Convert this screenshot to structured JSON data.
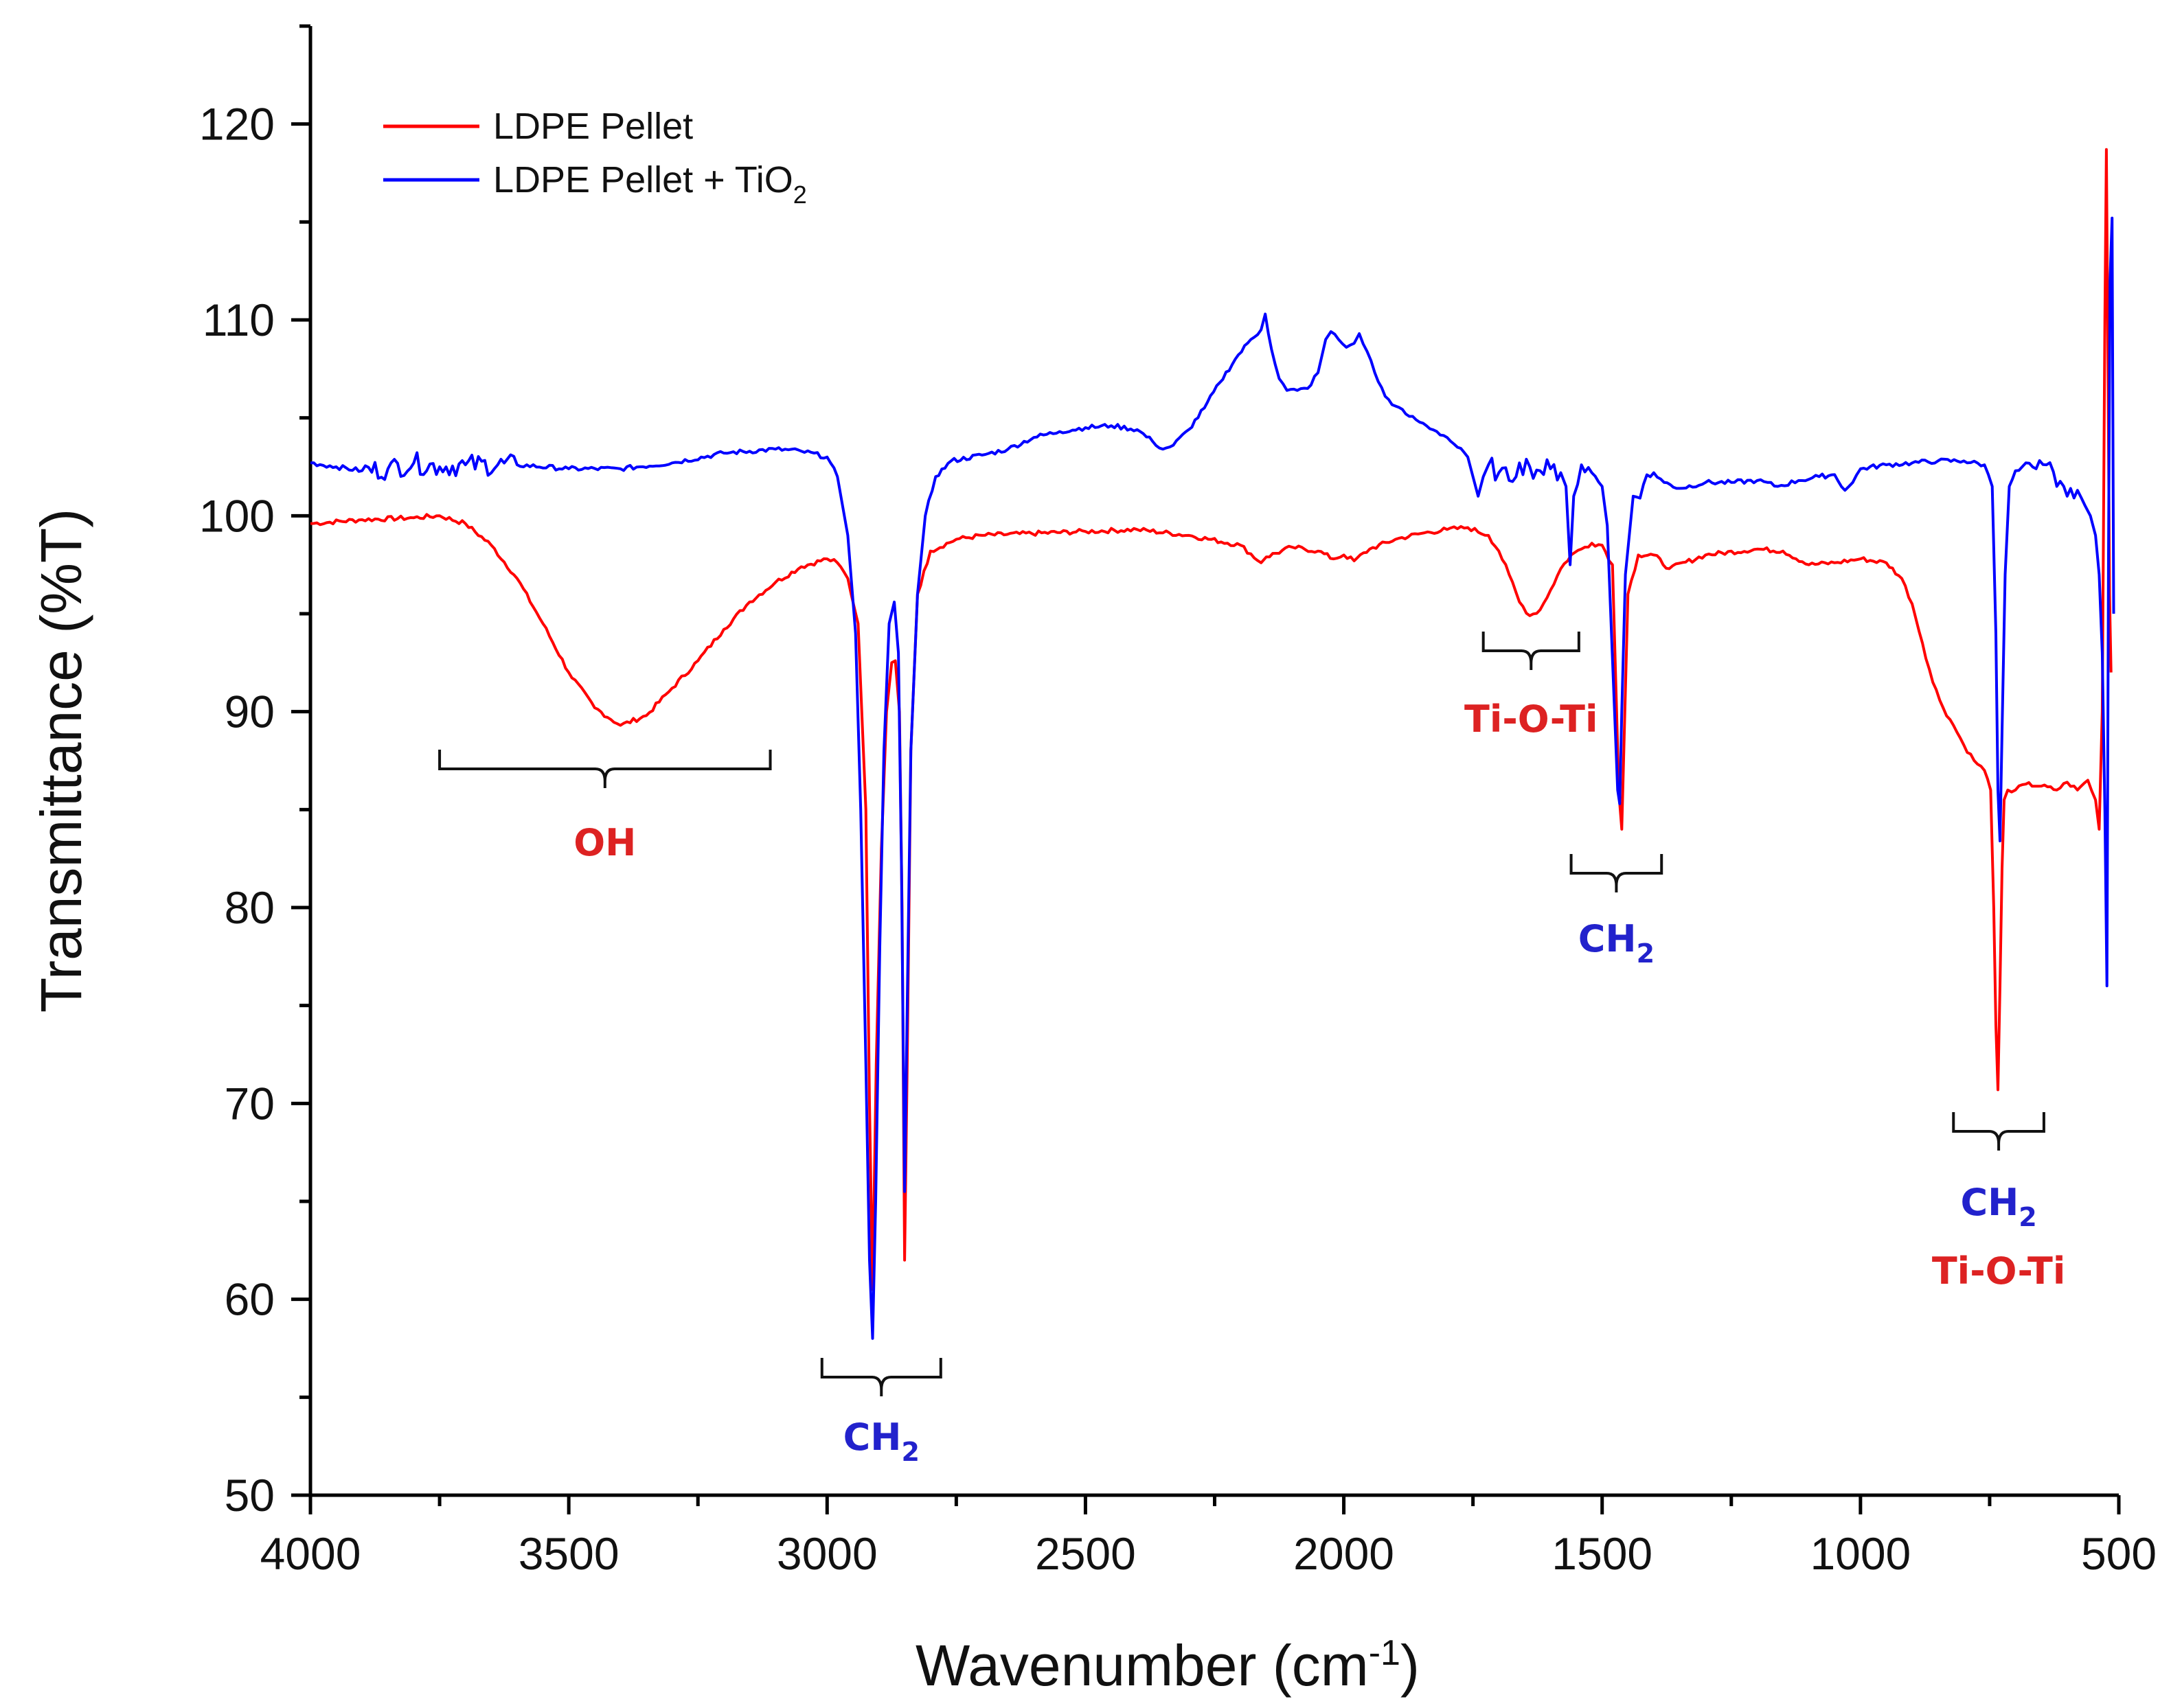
{
  "chart_data": {
    "type": "line",
    "title": "",
    "xlabel": "Wavenumber (cm",
    "xlabel_sup": "-1",
    "xlabel_close": ")",
    "ylabel": "Transmittance (%T)",
    "xlim": [
      4000,
      500
    ],
    "ylim": [
      50,
      125
    ],
    "xticks": [
      4000,
      3500,
      3000,
      2500,
      2000,
      1500,
      1000,
      500
    ],
    "yticks": [
      50,
      60,
      70,
      80,
      90,
      100,
      110,
      120
    ],
    "legend_position": "top-left",
    "series": [
      {
        "name": "LDPE Pellet",
        "color": "#ff0000",
        "legend_text": "LDPE Pellet",
        "points": [
          [
            4000,
            99.6
          ],
          [
            3900,
            99.8
          ],
          [
            3800,
            99.9
          ],
          [
            3750,
            100.0
          ],
          [
            3700,
            99.6
          ],
          [
            3650,
            98.5
          ],
          [
            3600,
            96.8
          ],
          [
            3550,
            94.5
          ],
          [
            3500,
            92.0
          ],
          [
            3450,
            90.2
          ],
          [
            3400,
            89.3
          ],
          [
            3350,
            89.8
          ],
          [
            3300,
            91.2
          ],
          [
            3250,
            92.6
          ],
          [
            3200,
            94.2
          ],
          [
            3150,
            95.6
          ],
          [
            3100,
            96.6
          ],
          [
            3050,
            97.4
          ],
          [
            3000,
            97.8
          ],
          [
            2980,
            97.6
          ],
          [
            2960,
            96.8
          ],
          [
            2940,
            94.5
          ],
          [
            2925,
            85.0
          ],
          [
            2918,
            70.0
          ],
          [
            2912,
            60.5
          ],
          [
            2905,
            72.0
          ],
          [
            2895,
            83.0
          ],
          [
            2885,
            90.0
          ],
          [
            2875,
            92.5
          ],
          [
            2868,
            92.6
          ],
          [
            2860,
            90.0
          ],
          [
            2855,
            80.0
          ],
          [
            2850,
            62.0
          ],
          [
            2845,
            72.0
          ],
          [
            2838,
            88.0
          ],
          [
            2825,
            96.0
          ],
          [
            2800,
            98.2
          ],
          [
            2750,
            98.8
          ],
          [
            2700,
            99.0
          ],
          [
            2500,
            99.2
          ],
          [
            2400,
            99.3
          ],
          [
            2300,
            99.0
          ],
          [
            2200,
            98.5
          ],
          [
            2160,
            97.6
          ],
          [
            2150,
            97.9
          ],
          [
            2100,
            98.4
          ],
          [
            2050,
            98.2
          ],
          [
            2020,
            97.8
          ],
          [
            2000,
            98.0
          ],
          [
            1980,
            97.7
          ],
          [
            1950,
            98.3
          ],
          [
            1900,
            98.8
          ],
          [
            1850,
            99.1
          ],
          [
            1800,
            99.3
          ],
          [
            1760,
            99.4
          ],
          [
            1720,
            99.0
          ],
          [
            1700,
            98.2
          ],
          [
            1680,
            97.0
          ],
          [
            1660,
            95.6
          ],
          [
            1640,
            94.9
          ],
          [
            1620,
            95.2
          ],
          [
            1600,
            96.2
          ],
          [
            1580,
            97.3
          ],
          [
            1560,
            98.0
          ],
          [
            1540,
            98.3
          ],
          [
            1520,
            98.6
          ],
          [
            1500,
            98.5
          ],
          [
            1480,
            97.5
          ],
          [
            1472,
            90.0
          ],
          [
            1468,
            86.0
          ],
          [
            1462,
            84.0
          ],
          [
            1458,
            88.0
          ],
          [
            1450,
            96.0
          ],
          [
            1430,
            98.0
          ],
          [
            1400,
            98.0
          ],
          [
            1370,
            97.3
          ],
          [
            1300,
            98.0
          ],
          [
            1200,
            98.3
          ],
          [
            1150,
            98.2
          ],
          [
            1100,
            97.5
          ],
          [
            1050,
            97.6
          ],
          [
            1000,
            97.8
          ],
          [
            950,
            97.6
          ],
          [
            920,
            96.8
          ],
          [
            900,
            95.5
          ],
          [
            880,
            93.5
          ],
          [
            860,
            91.5
          ],
          [
            840,
            90.2
          ],
          [
            820,
            89.3
          ],
          [
            800,
            88.3
          ],
          [
            780,
            87.5
          ],
          [
            760,
            87.0
          ],
          [
            748,
            86.0
          ],
          [
            742,
            80.0
          ],
          [
            738,
            74.0
          ],
          [
            734,
            70.7
          ],
          [
            730,
            76.0
          ],
          [
            726,
            82.0
          ],
          [
            722,
            85.5
          ],
          [
            715,
            86.0
          ],
          [
            700,
            86.0
          ],
          [
            680,
            86.3
          ],
          [
            650,
            86.2
          ],
          [
            620,
            86.0
          ],
          [
            600,
            86.4
          ],
          [
            580,
            86.0
          ],
          [
            560,
            86.5
          ],
          [
            545,
            85.5
          ],
          [
            538,
            84.0
          ],
          [
            532,
            90.0
          ],
          [
            527,
            110.0
          ],
          [
            524,
            118.7
          ],
          [
            521,
            108.0
          ],
          [
            518,
            96.0
          ],
          [
            515,
            92.0
          ]
        ]
      },
      {
        "name": "LDPE Pellet + TiO2",
        "color": "#0000ff",
        "legend_text": "LDPE Pellet + TiO",
        "legend_sub": "2",
        "points": [
          [
            4000,
            102.7
          ],
          [
            3950,
            102.5
          ],
          [
            3900,
            102.3
          ],
          [
            3850,
            102.4
          ],
          [
            3800,
            102.7
          ],
          [
            3750,
            102.5
          ],
          [
            3700,
            102.6
          ],
          [
            3600,
            102.6
          ],
          [
            3500,
            102.4
          ],
          [
            3400,
            102.4
          ],
          [
            3300,
            102.7
          ],
          [
            3200,
            103.2
          ],
          [
            3100,
            103.4
          ],
          [
            3050,
            103.3
          ],
          [
            3000,
            103.0
          ],
          [
            2980,
            102.0
          ],
          [
            2960,
            99.0
          ],
          [
            2945,
            94.0
          ],
          [
            2935,
            85.0
          ],
          [
            2925,
            72.0
          ],
          [
            2918,
            62.0
          ],
          [
            2912,
            58.0
          ],
          [
            2906,
            65.0
          ],
          [
            2898,
            78.0
          ],
          [
            2890,
            88.0
          ],
          [
            2880,
            94.5
          ],
          [
            2870,
            95.6
          ],
          [
            2862,
            93.0
          ],
          [
            2856,
            82.0
          ],
          [
            2850,
            65.5
          ],
          [
            2845,
            75.0
          ],
          [
            2838,
            88.0
          ],
          [
            2825,
            96.0
          ],
          [
            2810,
            100.0
          ],
          [
            2790,
            102.0
          ],
          [
            2760,
            102.8
          ],
          [
            2700,
            103.1
          ],
          [
            2650,
            103.4
          ],
          [
            2600,
            104.0
          ],
          [
            2550,
            104.3
          ],
          [
            2500,
            104.5
          ],
          [
            2450,
            104.6
          ],
          [
            2400,
            104.4
          ],
          [
            2370,
            103.8
          ],
          [
            2350,
            103.4
          ],
          [
            2330,
            103.6
          ],
          [
            2300,
            104.4
          ],
          [
            2270,
            105.5
          ],
          [
            2240,
            106.8
          ],
          [
            2210,
            108.0
          ],
          [
            2180,
            109.0
          ],
          [
            2160,
            109.5
          ],
          [
            2152,
            110.3
          ],
          [
            2140,
            108.5
          ],
          [
            2125,
            107.0
          ],
          [
            2110,
            106.4
          ],
          [
            2090,
            106.4
          ],
          [
            2070,
            106.5
          ],
          [
            2050,
            107.3
          ],
          [
            2035,
            109.0
          ],
          [
            2025,
            109.4
          ],
          [
            2010,
            109.0
          ],
          [
            1995,
            108.6
          ],
          [
            1980,
            108.8
          ],
          [
            1970,
            109.3
          ],
          [
            1955,
            108.4
          ],
          [
            1940,
            107.3
          ],
          [
            1920,
            106.1
          ],
          [
            1900,
            105.6
          ],
          [
            1880,
            105.2
          ],
          [
            1860,
            104.9
          ],
          [
            1840,
            104.6
          ],
          [
            1820,
            104.3
          ],
          [
            1800,
            104.0
          ],
          [
            1780,
            103.5
          ],
          [
            1760,
            103.0
          ],
          [
            1750,
            102.0
          ],
          [
            1740,
            101.0
          ],
          [
            1730,
            102.0
          ],
          [
            1720,
            102.6
          ],
          [
            1700,
            102.2
          ],
          [
            1680,
            101.8
          ],
          [
            1660,
            102.7
          ],
          [
            1640,
            102.5
          ],
          [
            1620,
            102.3
          ],
          [
            1600,
            102.4
          ],
          [
            1580,
            102.2
          ],
          [
            1570,
            101.5
          ],
          [
            1562,
            97.5
          ],
          [
            1555,
            101.0
          ],
          [
            1540,
            102.6
          ],
          [
            1520,
            102.2
          ],
          [
            1500,
            101.5
          ],
          [
            1490,
            99.5
          ],
          [
            1482,
            94.0
          ],
          [
            1476,
            90.0
          ],
          [
            1470,
            86.0
          ],
          [
            1466,
            85.3
          ],
          [
            1462,
            90.0
          ],
          [
            1455,
            97.0
          ],
          [
            1440,
            101.0
          ],
          [
            1420,
            101.6
          ],
          [
            1400,
            102.2
          ],
          [
            1380,
            101.7
          ],
          [
            1350,
            101.4
          ],
          [
            1300,
            101.7
          ],
          [
            1250,
            101.7
          ],
          [
            1200,
            101.8
          ],
          [
            1160,
            101.5
          ],
          [
            1120,
            101.8
          ],
          [
            1080,
            102.0
          ],
          [
            1050,
            102.1
          ],
          [
            1030,
            101.3
          ],
          [
            1015,
            101.7
          ],
          [
            1000,
            102.4
          ],
          [
            950,
            102.6
          ],
          [
            900,
            102.7
          ],
          [
            850,
            102.8
          ],
          [
            800,
            102.8
          ],
          [
            760,
            102.6
          ],
          [
            745,
            101.5
          ],
          [
            738,
            94.0
          ],
          [
            734,
            86.0
          ],
          [
            730,
            83.4
          ],
          [
            726,
            89.0
          ],
          [
            720,
            97.0
          ],
          [
            712,
            101.5
          ],
          [
            700,
            102.3
          ],
          [
            680,
            102.7
          ],
          [
            660,
            102.4
          ],
          [
            640,
            102.6
          ],
          [
            620,
            101.5
          ],
          [
            600,
            101.0
          ],
          [
            580,
            101.3
          ],
          [
            565,
            100.5
          ],
          [
            555,
            100.0
          ],
          [
            545,
            99.0
          ],
          [
            538,
            97.0
          ],
          [
            532,
            93.0
          ],
          [
            527,
            85.0
          ],
          [
            523,
            76.0
          ],
          [
            520,
            98.0
          ],
          [
            517,
            112.0
          ],
          [
            513,
            115.2
          ],
          [
            510,
            95.0
          ]
        ]
      }
    ],
    "annotations": [
      {
        "text": "OH",
        "color": "#dd2222",
        "range": [
          3750,
          3110
        ]
      },
      {
        "text": "CH",
        "sub": "2",
        "color": "#2222cc",
        "range": [
          3010,
          2780
        ]
      },
      {
        "text": "Ti-O-Ti",
        "color": "#dd2222",
        "range": [
          1730,
          1545
        ]
      },
      {
        "text": "CH",
        "sub": "2",
        "color": "#2222cc",
        "range": [
          1560,
          1385
        ]
      },
      {
        "text": "CH",
        "sub": "2",
        "color": "#2222cc",
        "range": [
          820,
          645
        ]
      },
      {
        "text": "Ti-O-Ti",
        "color": "#dd2222",
        "range": [
          820,
          645
        ]
      }
    ]
  }
}
